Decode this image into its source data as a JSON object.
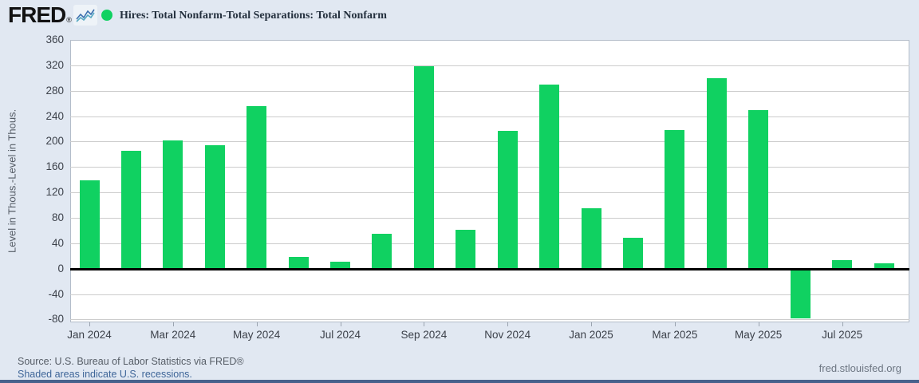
{
  "header": {
    "logo_text": "FRED",
    "logo_reg": "®",
    "legend_label": "Hires: Total Nonfarm-Total Separations: Total Nonfarm"
  },
  "footer": {
    "source": "Source: U.S. Bureau of Labor Statistics via FRED®",
    "recessions_link": "Shaded areas indicate U.S. recessions.",
    "site": "fred.stlouisfed.org"
  },
  "colors": {
    "bar": "#10d161",
    "legend_dot": "#10d161",
    "page_bg": "#e1e8f2",
    "bottom_strip": "#47618c",
    "link_blue": "#3e6598",
    "logo_line_1": "#3b6fae",
    "logo_line_2": "#55a8c2"
  },
  "chart_data": {
    "type": "bar",
    "title": "Hires: Total Nonfarm-Total Separations: Total Nonfarm",
    "xlabel": "",
    "ylabel": "Level in Thous.-Level in Thous.",
    "ylim": [
      -84,
      360
    ],
    "yticks": [
      360,
      320,
      280,
      240,
      200,
      160,
      120,
      80,
      40,
      0,
      -40,
      -80
    ],
    "grid": true,
    "legend_position": "top",
    "categories": [
      "Jan 2024",
      "Feb 2024",
      "Mar 2024",
      "Apr 2024",
      "May 2024",
      "Jun 2024",
      "Jul 2024",
      "Aug 2024",
      "Sep 2024",
      "Oct 2024",
      "Nov 2024",
      "Dec 2024",
      "Jan 2025",
      "Feb 2025",
      "Mar 2025",
      "Apr 2025",
      "May 2025",
      "Jun 2025",
      "Jul 2025",
      "Aug 2025"
    ],
    "values": [
      139,
      185,
      202,
      194,
      256,
      19,
      11,
      55,
      318,
      61,
      217,
      290,
      95,
      49,
      218,
      300,
      250,
      -78,
      13,
      9
    ],
    "xtick_labels": [
      "Jan 2024",
      "Mar 2024",
      "May 2024",
      "Jul 2024",
      "Sep 2024",
      "Nov 2024",
      "Jan 2025",
      "Mar 2025",
      "May 2025",
      "Jul 2025"
    ],
    "xtick_every": 2
  }
}
